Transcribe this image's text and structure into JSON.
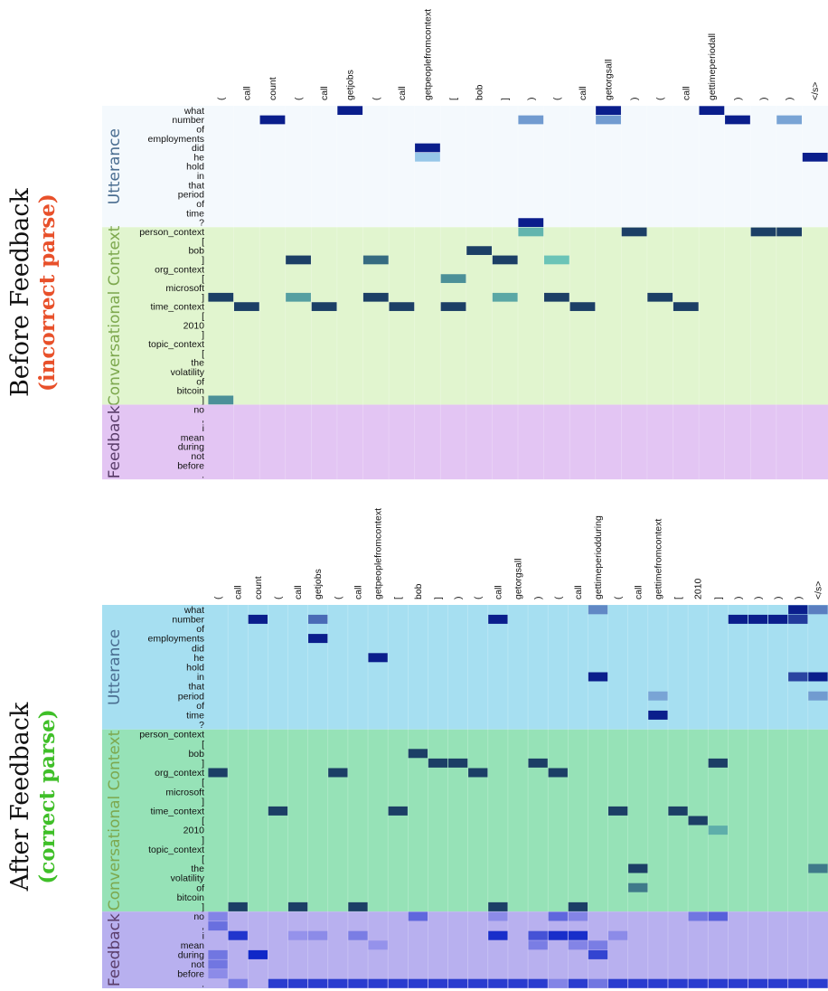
{
  "chart_data": [
    {
      "type": "heatmap",
      "title": "Before Feedback",
      "subtitle": "(incorrect parse)",
      "subtitle_color": "#e8502a",
      "x_labels": [
        "(",
        "call",
        "count",
        "(",
        "call",
        "getjobs",
        "(",
        "call",
        "getpeoplefromcontext",
        "[",
        "bob",
        "]",
        ")",
        "(",
        "call",
        "getorgsall",
        ")",
        "(",
        "call",
        "gettimeperiodall",
        ")",
        ")",
        ")",
        "</s>"
      ],
      "sections": [
        {
          "name": "Utterance",
          "label_color": "#4a6d90",
          "bg": "#f4f9fd",
          "rows": [
            "what",
            "number",
            "of",
            "employments",
            "did",
            "he",
            "hold",
            "in",
            "that",
            "period",
            "of",
            "time",
            "?"
          ]
        },
        {
          "name": "Conversational Context",
          "label_color": "#7da84e",
          "bg": "#e1f5cf",
          "rows": [
            "person_context",
            "[",
            "bob",
            "]",
            "org_context",
            "[",
            "microsoft",
            "]",
            "time_context",
            "[",
            "2010",
            "]",
            "topic_context",
            "[",
            "the",
            "volatility",
            "of",
            "bitcoin",
            "]"
          ]
        },
        {
          "name": "Feedback",
          "label_color": "#5a3d6a",
          "bg": "#e3c5f3",
          "rows": [
            "no",
            ",",
            "i",
            "mean",
            "during",
            "not",
            "before",
            "."
          ]
        }
      ],
      "cells": [
        {
          "row": 0,
          "col": 5,
          "v": 1.0
        },
        {
          "row": 0,
          "col": 15,
          "v": 1.0
        },
        {
          "row": 0,
          "col": 19,
          "v": 1.0
        },
        {
          "row": 1,
          "col": 2,
          "v": 1.0
        },
        {
          "row": 1,
          "col": 12,
          "v": 0.35
        },
        {
          "row": 1,
          "col": 15,
          "v": 0.35
        },
        {
          "row": 1,
          "col": 20,
          "v": 1.0
        },
        {
          "row": 1,
          "col": 22,
          "v": 0.3
        },
        {
          "row": 4,
          "col": 8,
          "v": 1.0
        },
        {
          "row": 5,
          "col": 8,
          "v": 0.12
        },
        {
          "row": 5,
          "col": 23,
          "v": 1.0
        },
        {
          "row": 12,
          "col": 12,
          "v": 1.0
        },
        {
          "row": 13,
          "col": 12,
          "v": 0.2
        },
        {
          "row": 13,
          "col": 16,
          "v": 1.0
        },
        {
          "row": 13,
          "col": 21,
          "v": 1.0
        },
        {
          "row": 13,
          "col": 22,
          "v": 1.0
        },
        {
          "row": 15,
          "col": 10,
          "v": 1.0
        },
        {
          "row": 16,
          "col": 3,
          "v": 1.0
        },
        {
          "row": 16,
          "col": 6,
          "v": 0.7
        },
        {
          "row": 16,
          "col": 11,
          "v": 1.0
        },
        {
          "row": 16,
          "col": 13,
          "v": 0.1
        },
        {
          "row": 18,
          "col": 9,
          "v": 0.45
        },
        {
          "row": 20,
          "col": 0,
          "v": 1.0
        },
        {
          "row": 20,
          "col": 3,
          "v": 0.35
        },
        {
          "row": 20,
          "col": 6,
          "v": 1.0
        },
        {
          "row": 20,
          "col": 11,
          "v": 0.3
        },
        {
          "row": 20,
          "col": 13,
          "v": 1.0
        },
        {
          "row": 20,
          "col": 17,
          "v": 1.0
        },
        {
          "row": 21,
          "col": 1,
          "v": 1.0
        },
        {
          "row": 21,
          "col": 4,
          "v": 1.0
        },
        {
          "row": 21,
          "col": 7,
          "v": 1.0
        },
        {
          "row": 21,
          "col": 9,
          "v": 1.0
        },
        {
          "row": 21,
          "col": 14,
          "v": 1.0
        },
        {
          "row": 21,
          "col": 18,
          "v": 1.0
        },
        {
          "row": 31,
          "col": 0,
          "v": 0.45
        }
      ]
    },
    {
      "type": "heatmap",
      "title": "After Feedback",
      "subtitle": "(correct parse)",
      "subtitle_color": "#3fbf28",
      "x_labels": [
        "(",
        "call",
        "count",
        "(",
        "call",
        "getjobs",
        "(",
        "call",
        "getpeoplefromcontext",
        "[",
        "bob",
        "]",
        ")",
        "(",
        "call",
        "getorgsall",
        ")",
        "(",
        "call",
        "gettimeperiodduring",
        "(",
        "call",
        "gettimefromcontext",
        "[",
        "2010",
        "]",
        ")",
        ")",
        ")",
        ")",
        "</s>"
      ],
      "sections": [
        {
          "name": "Utterance",
          "label_color": "#4a6d90",
          "bg": "#a6dff1",
          "rows": [
            "what",
            "number",
            "of",
            "employments",
            "did",
            "he",
            "hold",
            "in",
            "that",
            "period",
            "of",
            "time",
            "?"
          ]
        },
        {
          "name": "Conversational Context",
          "label_color": "#7da84e",
          "bg": "#96e2b7",
          "rows": [
            "person_context",
            "[",
            "bob",
            "]",
            "org_context",
            "[",
            "microsoft",
            "]",
            "time_context",
            "[",
            "2010",
            "]",
            "topic_context",
            "[",
            "the",
            "volatility",
            "of",
            "bitcoin",
            "]"
          ]
        },
        {
          "name": "Feedback",
          "label_color": "#5a3d6a",
          "bg": "#b8b0ef",
          "rows": [
            "no",
            ",",
            "i",
            "mean",
            "during",
            "not",
            "before",
            "."
          ]
        }
      ],
      "cells": [
        {
          "row": 0,
          "col": 19,
          "v": 0.45
        },
        {
          "row": 0,
          "col": 29,
          "v": 1.0
        },
        {
          "row": 0,
          "col": 30,
          "v": 0.5
        },
        {
          "row": 1,
          "col": 2,
          "v": 1.0
        },
        {
          "row": 1,
          "col": 5,
          "v": 0.6
        },
        {
          "row": 1,
          "col": 14,
          "v": 1.0
        },
        {
          "row": 1,
          "col": 26,
          "v": 1.0
        },
        {
          "row": 1,
          "col": 27,
          "v": 1.0
        },
        {
          "row": 1,
          "col": 28,
          "v": 1.0
        },
        {
          "row": 1,
          "col": 29,
          "v": 0.85
        },
        {
          "row": 3,
          "col": 5,
          "v": 1.0
        },
        {
          "row": 5,
          "col": 8,
          "v": 1.0
        },
        {
          "row": 7,
          "col": 19,
          "v": 1.0
        },
        {
          "row": 7,
          "col": 29,
          "v": 0.8
        },
        {
          "row": 7,
          "col": 30,
          "v": 1.0
        },
        {
          "row": 9,
          "col": 22,
          "v": 0.3
        },
        {
          "row": 9,
          "col": 30,
          "v": 0.35
        },
        {
          "row": 11,
          "col": 22,
          "v": 1.0
        },
        {
          "row": 15,
          "col": 10,
          "v": 1.0
        },
        {
          "row": 16,
          "col": 11,
          "v": 1.0
        },
        {
          "row": 16,
          "col": 12,
          "v": 1.0
        },
        {
          "row": 16,
          "col": 16,
          "v": 1.0
        },
        {
          "row": 16,
          "col": 25,
          "v": 1.0
        },
        {
          "row": 17,
          "col": 0,
          "v": 1.0
        },
        {
          "row": 17,
          "col": 6,
          "v": 1.0
        },
        {
          "row": 17,
          "col": 13,
          "v": 1.0
        },
        {
          "row": 17,
          "col": 17,
          "v": 1.0
        },
        {
          "row": 21,
          "col": 3,
          "v": 1.0
        },
        {
          "row": 21,
          "col": 9,
          "v": 1.0
        },
        {
          "row": 21,
          "col": 20,
          "v": 1.0
        },
        {
          "row": 21,
          "col": 23,
          "v": 1.0
        },
        {
          "row": 22,
          "col": 24,
          "v": 1.0
        },
        {
          "row": 23,
          "col": 25,
          "v": 0.25
        },
        {
          "row": 27,
          "col": 21,
          "v": 1.0
        },
        {
          "row": 27,
          "col": 30,
          "v": 0.6
        },
        {
          "row": 29,
          "col": 21,
          "v": 0.6
        },
        {
          "row": 31,
          "col": 1,
          "v": 1.0
        },
        {
          "row": 31,
          "col": 4,
          "v": 1.0
        },
        {
          "row": 31,
          "col": 7,
          "v": 1.0
        },
        {
          "row": 31,
          "col": 14,
          "v": 1.0
        },
        {
          "row": 31,
          "col": 18,
          "v": 1.0
        },
        {
          "row": 32,
          "col": 0,
          "v": 0.35
        },
        {
          "row": 32,
          "col": 10,
          "v": 0.55
        },
        {
          "row": 32,
          "col": 14,
          "v": 0.3
        },
        {
          "row": 32,
          "col": 17,
          "v": 0.55
        },
        {
          "row": 32,
          "col": 18,
          "v": 0.35
        },
        {
          "row": 32,
          "col": 24,
          "v": 0.45
        },
        {
          "row": 32,
          "col": 25,
          "v": 0.6
        },
        {
          "row": 33,
          "col": 0,
          "v": 0.5
        },
        {
          "row": 34,
          "col": 1,
          "v": 0.9
        },
        {
          "row": 34,
          "col": 4,
          "v": 0.25
        },
        {
          "row": 34,
          "col": 5,
          "v": 0.3
        },
        {
          "row": 34,
          "col": 7,
          "v": 0.4
        },
        {
          "row": 34,
          "col": 14,
          "v": 0.95
        },
        {
          "row": 34,
          "col": 16,
          "v": 0.7
        },
        {
          "row": 34,
          "col": 17,
          "v": 0.95
        },
        {
          "row": 34,
          "col": 18,
          "v": 0.95
        },
        {
          "row": 34,
          "col": 20,
          "v": 0.3
        },
        {
          "row": 35,
          "col": 8,
          "v": 0.25
        },
        {
          "row": 35,
          "col": 16,
          "v": 0.4
        },
        {
          "row": 35,
          "col": 18,
          "v": 0.35
        },
        {
          "row": 35,
          "col": 19,
          "v": 0.4
        },
        {
          "row": 36,
          "col": 0,
          "v": 0.45
        },
        {
          "row": 36,
          "col": 2,
          "v": 1.0
        },
        {
          "row": 36,
          "col": 19,
          "v": 0.8
        },
        {
          "row": 37,
          "col": 0,
          "v": 0.45
        },
        {
          "row": 38,
          "col": 0,
          "v": 0.3
        },
        {
          "row": 39,
          "col": 1,
          "v": 0.4
        },
        {
          "row": 39,
          "col": 3,
          "v": 0.85
        },
        {
          "row": 39,
          "col": 4,
          "v": 0.85
        },
        {
          "row": 39,
          "col": 5,
          "v": 0.85
        },
        {
          "row": 39,
          "col": 6,
          "v": 0.85
        },
        {
          "row": 39,
          "col": 7,
          "v": 0.85
        },
        {
          "row": 39,
          "col": 8,
          "v": 0.85
        },
        {
          "row": 39,
          "col": 9,
          "v": 0.85
        },
        {
          "row": 39,
          "col": 10,
          "v": 0.85
        },
        {
          "row": 39,
          "col": 11,
          "v": 0.85
        },
        {
          "row": 39,
          "col": 12,
          "v": 0.85
        },
        {
          "row": 39,
          "col": 13,
          "v": 0.85
        },
        {
          "row": 39,
          "col": 14,
          "v": 0.85
        },
        {
          "row": 39,
          "col": 15,
          "v": 0.85
        },
        {
          "row": 39,
          "col": 16,
          "v": 0.85
        },
        {
          "row": 39,
          "col": 17,
          "v": 0.35
        },
        {
          "row": 39,
          "col": 18,
          "v": 0.85
        },
        {
          "row": 39,
          "col": 19,
          "v": 0.45
        },
        {
          "row": 39,
          "col": 20,
          "v": 0.85
        },
        {
          "row": 39,
          "col": 21,
          "v": 0.85
        },
        {
          "row": 39,
          "col": 22,
          "v": 0.85
        },
        {
          "row": 39,
          "col": 23,
          "v": 0.85
        },
        {
          "row": 39,
          "col": 24,
          "v": 0.85
        },
        {
          "row": 39,
          "col": 25,
          "v": 0.85
        },
        {
          "row": 39,
          "col": 26,
          "v": 0.85
        },
        {
          "row": 39,
          "col": 27,
          "v": 0.85
        },
        {
          "row": 39,
          "col": 28,
          "v": 0.85
        },
        {
          "row": 39,
          "col": 29,
          "v": 0.85
        },
        {
          "row": 39,
          "col": 30,
          "v": 0.85
        }
      ]
    }
  ]
}
